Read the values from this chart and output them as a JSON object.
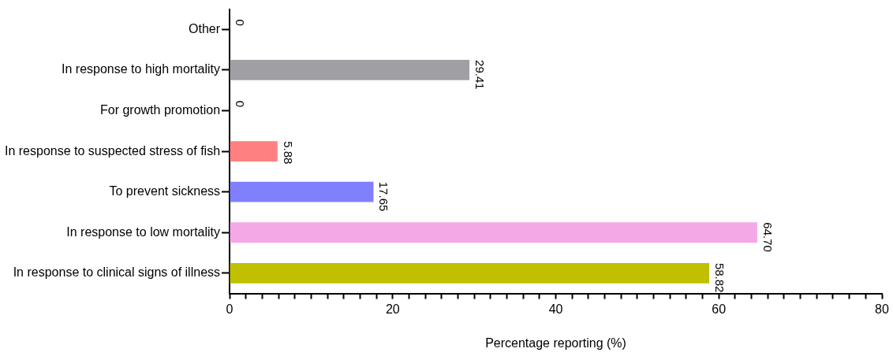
{
  "chart_data": {
    "type": "bar",
    "orientation": "horizontal",
    "xlabel": "Percentage reporting (%)",
    "categories": [
      "Other",
      "In response to high mortality",
      "For growth promotion",
      "In response to suspected stress of fish",
      "To prevent sickness",
      "In response to low mortality",
      "In response to clinical signs of illness"
    ],
    "values": [
      0,
      29.41,
      0,
      5.88,
      17.65,
      64.7,
      58.82
    ],
    "value_labels": [
      "0",
      "29.41",
      "0",
      "5.88",
      "17.65",
      "64.70",
      "58.82"
    ],
    "colors": [
      "#a0a0a4",
      "#a0a0a4",
      "#ff8080",
      "#ff8080",
      "#8080ff",
      "#f5a8e6",
      "#c0c000"
    ],
    "xlim": [
      0,
      80
    ],
    "xticks": [
      0,
      {
        "value": 2,
        "label": null
      },
      {
        "value": 4,
        "label": null
      },
      {
        "value": 6,
        "label": null
      },
      {
        "value": 8,
        "label": null
      },
      {
        "value": 10,
        "label": null
      },
      {
        "value": 12,
        "label": null
      },
      {
        "value": 14,
        "label": null
      },
      {
        "value": 16,
        "label": null
      },
      {
        "value": 18,
        "label": null
      },
      20,
      {
        "value": 22,
        "label": null
      },
      {
        "value": 24,
        "label": null
      },
      {
        "value": 26,
        "label": null
      },
      {
        "value": 28,
        "label": null
      },
      {
        "value": 30,
        "label": null
      },
      {
        "value": 32,
        "label": null
      },
      {
        "value": 34,
        "label": null
      },
      {
        "value": 36,
        "label": null
      },
      {
        "value": 38,
        "label": null
      },
      40,
      {
        "value": 42,
        "label": null
      },
      {
        "value": 44,
        "label": null
      },
      {
        "value": 46,
        "label": null
      },
      {
        "value": 48,
        "label": null
      },
      {
        "value": 50,
        "label": null
      },
      {
        "value": 52,
        "label": null
      },
      {
        "value": 54,
        "label": null
      },
      {
        "value": 56,
        "label": null
      },
      {
        "value": 58,
        "label": null
      },
      60,
      {
        "value": 62,
        "label": null
      },
      {
        "value": 64,
        "label": null
      },
      {
        "value": 66,
        "label": null
      },
      {
        "value": 68,
        "label": null
      },
      {
        "value": 70,
        "label": null
      },
      {
        "value": 72,
        "label": null
      },
      {
        "value": 74,
        "label": null
      },
      {
        "value": 76,
        "label": null
      },
      {
        "value": 78,
        "label": null
      },
      80
    ],
    "grid": false,
    "legend": false
  }
}
